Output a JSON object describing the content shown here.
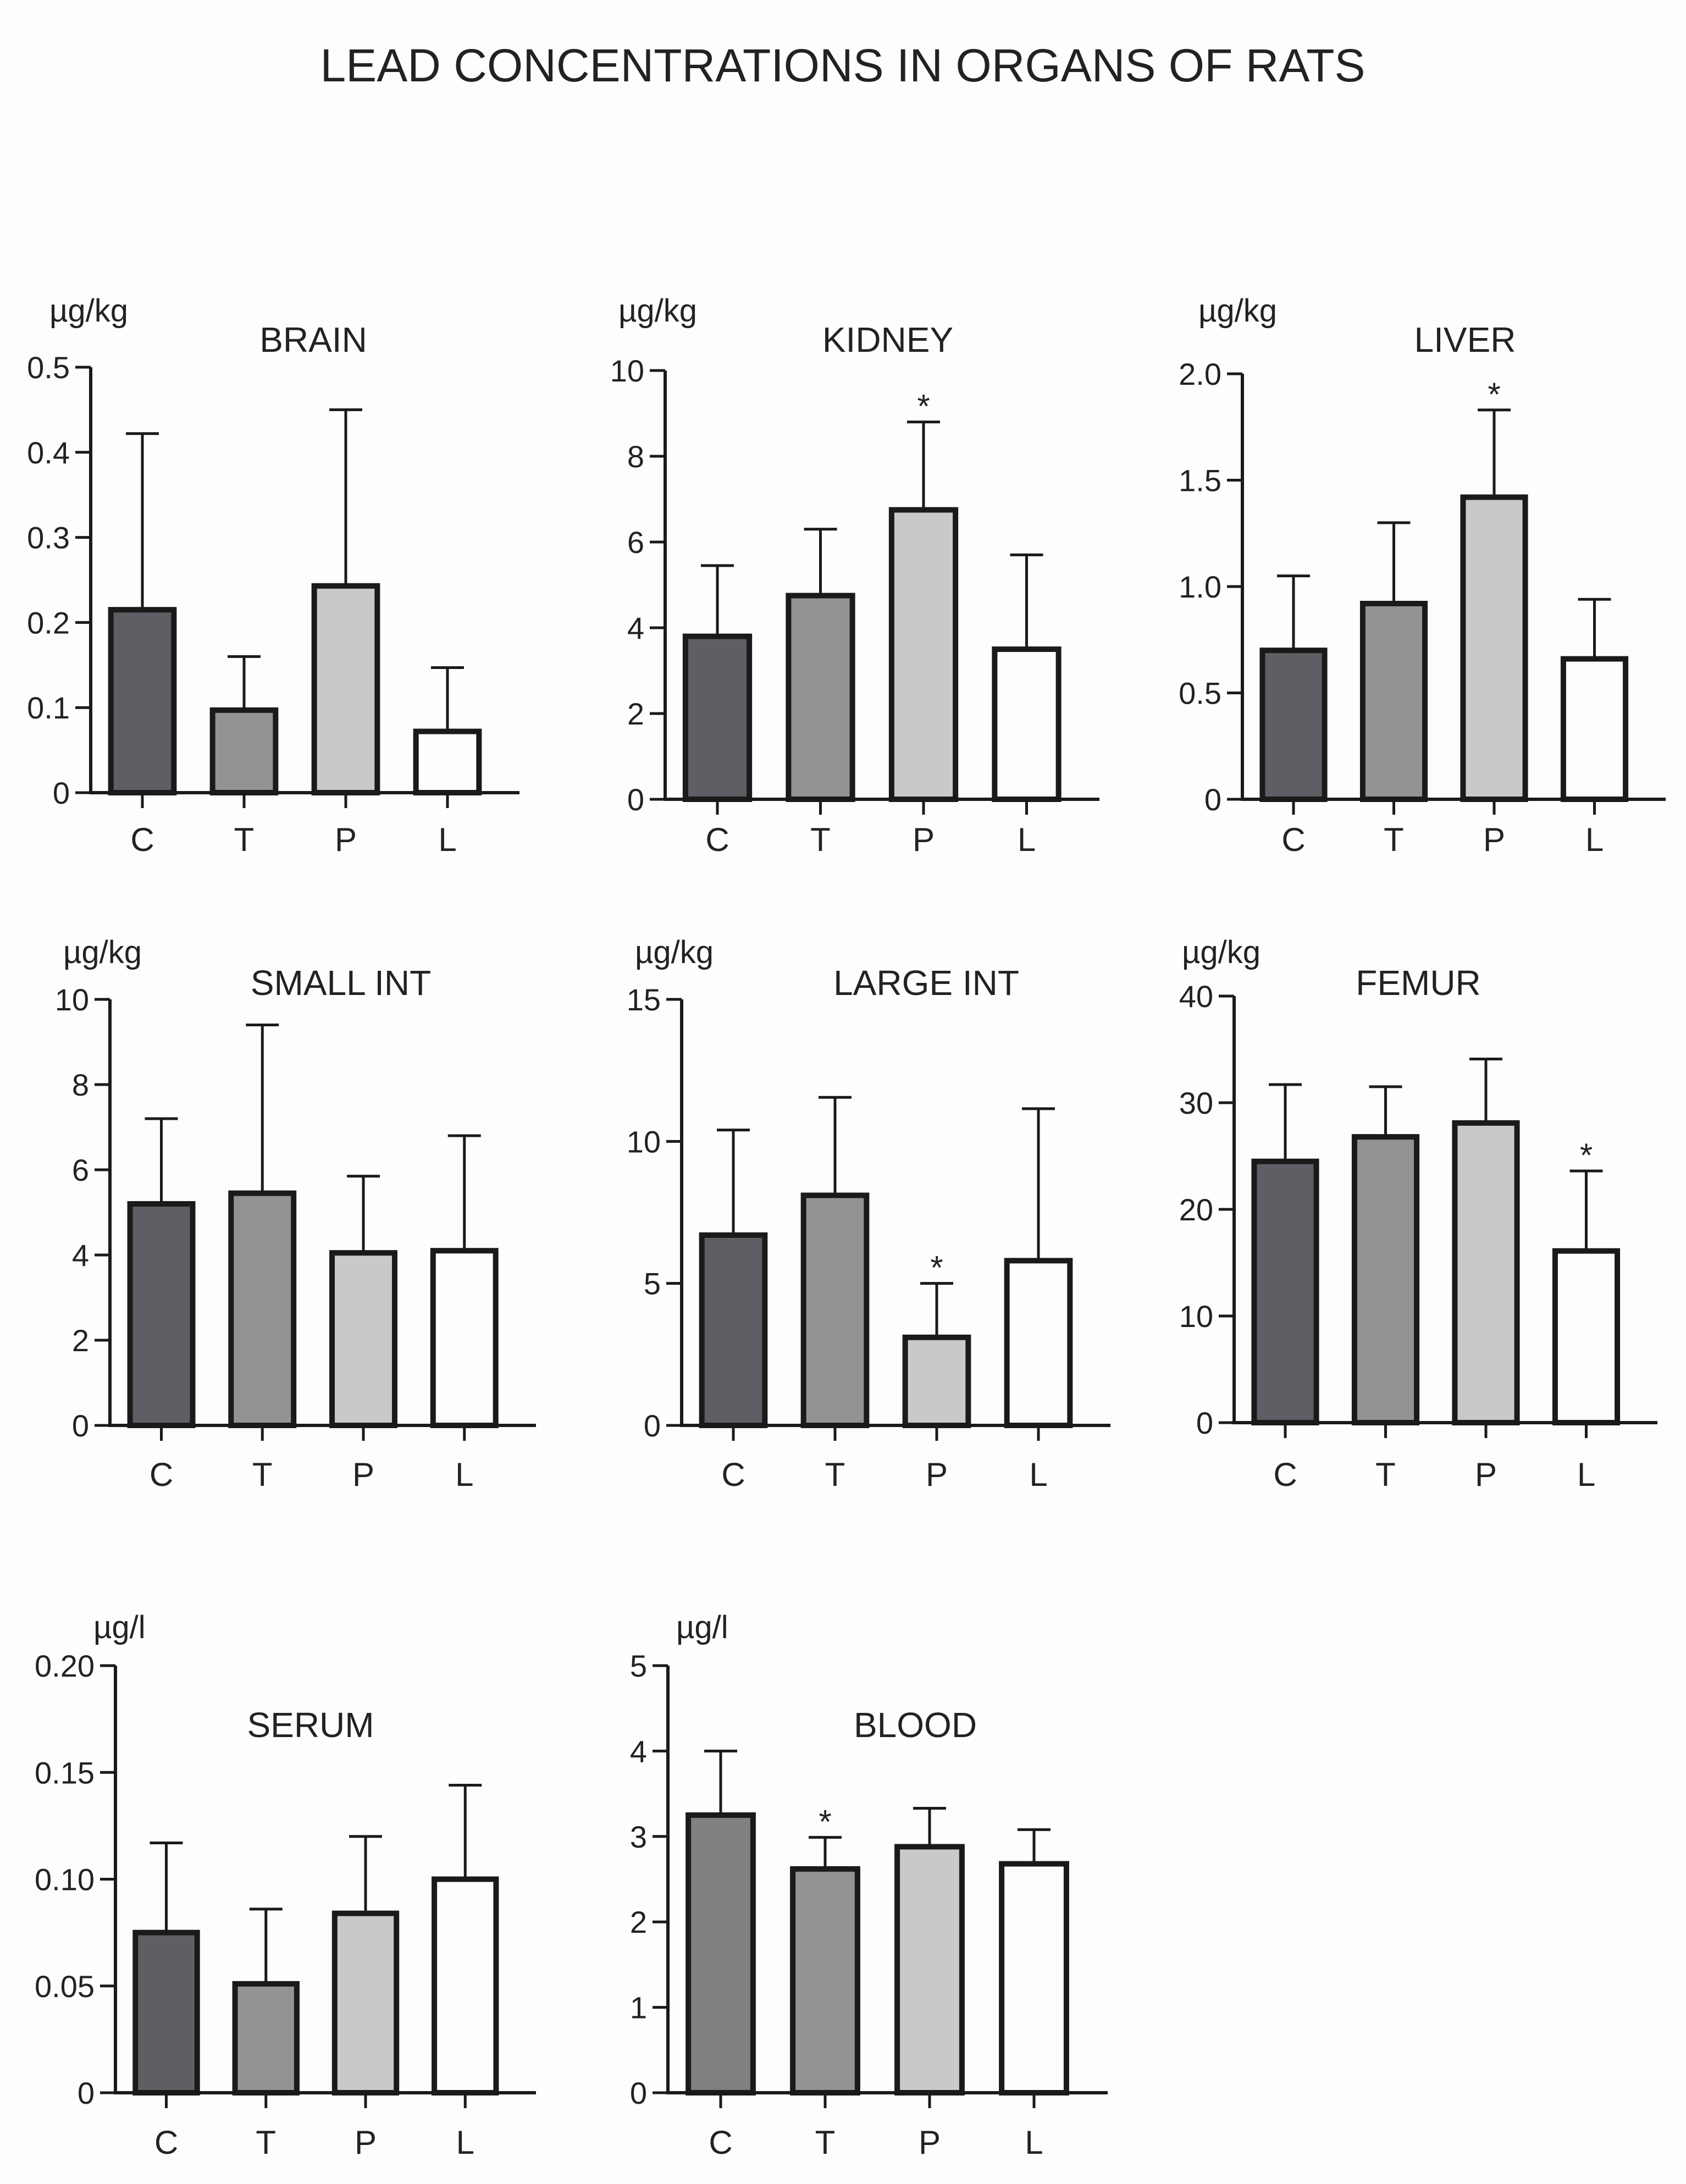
{
  "figure_title": "LEAD CONCENTRATIONS IN ORGANS OF RATS",
  "colors": {
    "C": "#5f5e64",
    "T": "#959294",
    "P": "#c9c9cb",
    "L": "#fdfdfd",
    "C_blood": "#808080",
    "axis": "#1a1a1a"
  },
  "chart_data": [
    {
      "type": "bar",
      "title": "BRAIN",
      "unit": "µg/kg",
      "categories": [
        "C",
        "T",
        "P",
        "L"
      ],
      "values": [
        0.215,
        0.097,
        0.243,
        0.072
      ],
      "errors": [
        0.207,
        0.063,
        0.207,
        0.075
      ],
      "significant": [
        false,
        false,
        false,
        false
      ],
      "ylim": [
        0,
        0.5
      ],
      "yticks": [
        0,
        0.1,
        0.2,
        0.3,
        0.4,
        0.5
      ],
      "ytick_labels": [
        "0",
        "0.1",
        "0.2",
        "0.3",
        "0.4",
        "0.5"
      ]
    },
    {
      "type": "bar",
      "title": "KIDNEY",
      "unit": "µg/kg",
      "categories": [
        "C",
        "T",
        "P",
        "L"
      ],
      "values": [
        3.8,
        4.75,
        6.75,
        3.5
      ],
      "errors": [
        1.65,
        1.55,
        2.05,
        2.2
      ],
      "significant": [
        false,
        false,
        true,
        false
      ],
      "ylim": [
        0,
        10
      ],
      "yticks": [
        0,
        2,
        4,
        6,
        8,
        10
      ],
      "ytick_labels": [
        "0",
        "2",
        "4",
        "6",
        "8",
        "10"
      ]
    },
    {
      "type": "bar",
      "title": "LIVER",
      "unit": "µg/kg",
      "categories": [
        "C",
        "T",
        "P",
        "L"
      ],
      "values": [
        0.7,
        0.92,
        1.42,
        0.66
      ],
      "errors": [
        0.35,
        0.38,
        0.41,
        0.28
      ],
      "significant": [
        false,
        false,
        true,
        false
      ],
      "ylim": [
        0,
        2.0
      ],
      "yticks": [
        0,
        0.5,
        1.0,
        1.5,
        2.0
      ],
      "ytick_labels": [
        "0",
        "0.5",
        "1.0",
        "1.5",
        "2.0"
      ]
    },
    {
      "type": "bar",
      "title": "SMALL INT",
      "unit": "µg/kg",
      "categories": [
        "C",
        "T",
        "P",
        "L"
      ],
      "values": [
        5.2,
        5.45,
        4.05,
        4.1
      ],
      "errors": [
        2.0,
        3.95,
        1.8,
        2.7
      ],
      "significant": [
        false,
        false,
        false,
        false
      ],
      "ylim": [
        0,
        10
      ],
      "yticks": [
        0,
        2,
        4,
        6,
        8,
        10
      ],
      "ytick_labels": [
        "0",
        "2",
        "4",
        "6",
        "8",
        "10"
      ]
    },
    {
      "type": "bar",
      "title": "LARGE INT",
      "unit": "µg/kg",
      "categories": [
        "C",
        "T",
        "P",
        "L"
      ],
      "values": [
        6.7,
        8.1,
        3.1,
        5.8
      ],
      "errors": [
        3.7,
        3.45,
        1.9,
        5.35
      ],
      "significant": [
        false,
        false,
        true,
        false
      ],
      "ylim": [
        0,
        15
      ],
      "yticks": [
        0,
        5,
        10,
        15
      ],
      "ytick_labels": [
        "0",
        "5",
        "10",
        "15"
      ]
    },
    {
      "type": "bar",
      "title": "FEMUR",
      "unit": "µg/kg",
      "categories": [
        "C",
        "T",
        "P",
        "L"
      ],
      "values": [
        24.5,
        26.8,
        28.1,
        16.1
      ],
      "errors": [
        7.2,
        4.7,
        6.0,
        7.5
      ],
      "significant": [
        false,
        false,
        false,
        true
      ],
      "ylim": [
        0,
        40
      ],
      "yticks": [
        0,
        10,
        20,
        30,
        40
      ],
      "ytick_labels": [
        "0",
        "10",
        "20",
        "30",
        "40"
      ]
    },
    {
      "type": "bar",
      "title": "SERUM",
      "unit": "µg/l",
      "categories": [
        "C",
        "T",
        "P",
        "L"
      ],
      "values": [
        0.075,
        0.051,
        0.084,
        0.1
      ],
      "errors": [
        0.042,
        0.035,
        0.036,
        0.044
      ],
      "significant": [
        false,
        false,
        false,
        false
      ],
      "ylim": [
        0,
        0.2
      ],
      "yticks": [
        0,
        0.05,
        0.1,
        0.15,
        0.2
      ],
      "ytick_labels": [
        "0",
        "0.05",
        "0.10",
        "0.15",
        "0.20"
      ]
    },
    {
      "type": "bar",
      "title": "BLOOD",
      "unit": "µg/l",
      "categories": [
        "C",
        "T",
        "P",
        "L"
      ],
      "values": [
        3.25,
        2.62,
        2.88,
        2.68
      ],
      "errors": [
        0.75,
        0.37,
        0.45,
        0.4
      ],
      "significant": [
        false,
        true,
        false,
        false
      ],
      "ylim": [
        0,
        5
      ],
      "yticks": [
        0,
        1,
        2,
        3,
        4,
        5
      ],
      "ytick_labels": [
        "0",
        "1",
        "2",
        "3",
        "4",
        "5"
      ]
    }
  ]
}
